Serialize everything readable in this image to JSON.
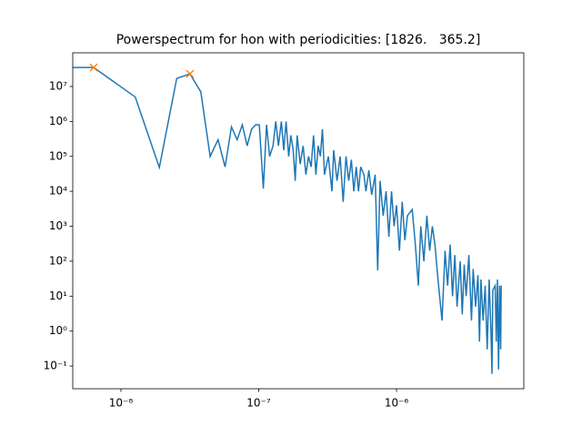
{
  "chart_data": {
    "type": "line",
    "title": "Powerspectrum for hon with periodicities: [1826.   365.2]",
    "xscale": "log",
    "yscale": "log",
    "grid": false,
    "xlim": [
      4.47e-09,
      8.39e-06
    ],
    "ylim": [
      0.0224,
      92000000.0
    ],
    "xticks": [
      {
        "value": 1e-08,
        "label": "10⁻⁸"
      },
      {
        "value": 1e-07,
        "label": "10⁻⁷"
      },
      {
        "value": 1e-06,
        "label": "10⁻⁶"
      }
    ],
    "yticks": [
      {
        "value": 0.1,
        "label": "10⁻¹"
      },
      {
        "value": 1,
        "label": "10⁰"
      },
      {
        "value": 10,
        "label": "10¹"
      },
      {
        "value": 100,
        "label": "10²"
      },
      {
        "value": 1000,
        "label": "10³"
      },
      {
        "value": 10000,
        "label": "10⁴"
      },
      {
        "value": 100000,
        "label": "10⁵"
      },
      {
        "value": 1000000,
        "label": "10⁶"
      },
      {
        "value": 10000000,
        "label": "10⁷"
      }
    ],
    "series": [
      {
        "color": "#1f77b4",
        "marker": "line",
        "x": [
          4.47e-09,
          6.34e-09,
          1.27e-08,
          1.9e-08,
          2.54e-08,
          3.17e-08,
          3.8e-08,
          4.44e-08,
          5.07e-08,
          5.7e-08,
          6.34e-08,
          6.97e-08,
          7.6e-08,
          8.24e-08,
          8.87e-08,
          9.5e-08,
          1.01e-07,
          1.08e-07,
          1.14e-07,
          1.2e-07,
          1.27e-07,
          1.33e-07,
          1.39e-07,
          1.46e-07,
          1.52e-07,
          1.58e-07,
          1.65e-07,
          1.71e-07,
          1.78e-07,
          1.84e-07,
          1.9e-07,
          2e-07,
          2.1e-07,
          2.2e-07,
          2.3e-07,
          2.4e-07,
          2.5e-07,
          2.6e-07,
          2.7e-07,
          2.8e-07,
          2.9e-07,
          3e-07,
          3.2e-07,
          3.4e-07,
          3.5e-07,
          3.7e-07,
          3.9e-07,
          4.1e-07,
          4.3e-07,
          4.5e-07,
          4.7e-07,
          4.9e-07,
          5.1e-07,
          5.3e-07,
          5.5e-07,
          5.8e-07,
          6e-07,
          6.3e-07,
          6.6e-07,
          7e-07,
          7.3e-07,
          7.6e-07,
          8e-07,
          8.4e-07,
          8.8e-07,
          9.2e-07,
          9.6e-07,
          1e-06,
          1.05e-06,
          1.1e-06,
          1.15e-06,
          1.2e-06,
          1.3e-06,
          1.37e-06,
          1.44e-06,
          1.5e-06,
          1.58e-06,
          1.66e-06,
          1.74e-06,
          1.82e-06,
          1.9e-06,
          2e-06,
          2.14e-06,
          2.25e-06,
          2.35e-06,
          2.45e-06,
          2.55e-06,
          2.65e-06,
          2.75e-06,
          2.9e-06,
          3e-06,
          3.1e-06,
          3.2e-06,
          3.35e-06,
          3.5e-06,
          3.6e-06,
          3.75e-06,
          3.9e-06,
          4e-06,
          4.1e-06,
          4.25e-06,
          4.4e-06,
          4.55e-06,
          4.7e-06,
          4.85e-06,
          4.93e-06,
          5e-06,
          5.2e-06,
          5.3e-06,
          5.4e-06,
          5.5e-06,
          5.6e-06,
          5.7e-06,
          5.75e-06
        ],
        "values": [
          35000000.0,
          35000000.0,
          5000000.0,
          48000.0,
          17000000.0,
          23000000.0,
          7000000.0,
          100000.0,
          300000.0,
          50000.0,
          700000.0,
          300000.0,
          800000.0,
          200000.0,
          600000.0,
          800000.0,
          800000.0,
          12000.0,
          800000.0,
          100000.0,
          200000.0,
          1000000.0,
          200000.0,
          1000000.0,
          150000.0,
          1000000.0,
          100000.0,
          400000.0,
          150000.0,
          20000.0,
          400000.0,
          60000.0,
          200000.0,
          30000.0,
          100000.0,
          50000.0,
          400000.0,
          30000.0,
          200000.0,
          100000.0,
          600000.0,
          30000.0,
          100000.0,
          10000.0,
          150000.0,
          20000.0,
          100000.0,
          5000.0,
          100000.0,
          20000.0,
          80000.0,
          10000.0,
          50000.0,
          10000.0,
          50000.0,
          30000.0,
          10000.0,
          40000.0,
          8000.0,
          30000.0,
          55,
          20000.0,
          2000.0,
          10000.0,
          500,
          10000.0,
          1000.0,
          4000.0,
          200,
          5000.0,
          400,
          2000.0,
          3000.0,
          300,
          20,
          1000.0,
          100,
          2000.0,
          200,
          1000.0,
          300,
          30,
          2,
          200,
          20,
          300,
          10,
          150,
          5,
          100,
          3,
          80,
          10,
          150,
          2,
          60,
          5,
          40,
          0.5,
          30,
          2,
          20,
          0.3,
          30,
          1,
          0.06,
          15,
          20,
          0.5,
          30,
          0.08,
          20,
          0.3,
          20
        ]
      },
      {
        "color": "#ff7f0e",
        "marker": "x",
        "x": [
          6.34e-09,
          3.17e-08
        ],
        "values": [
          35000000.0,
          23000000.0
        ]
      }
    ]
  }
}
